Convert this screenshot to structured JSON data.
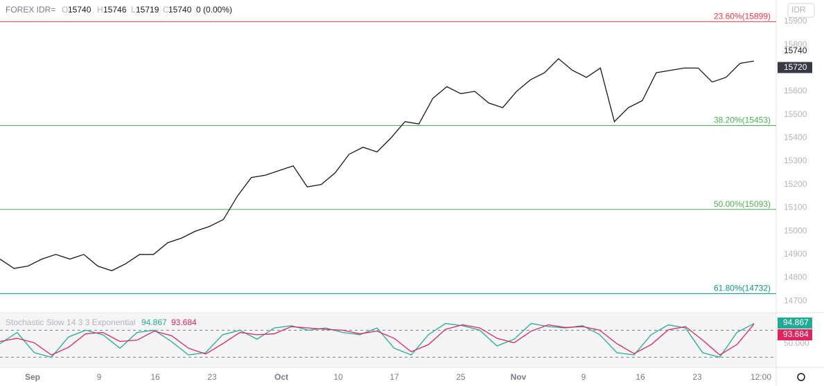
{
  "chart_data": {
    "type": "line",
    "symbol": "FOREX IDR=",
    "ohlc_header": {
      "O": 15740,
      "H": 15746,
      "L": 15719,
      "C": 15740,
      "change": "0 (0.00%)"
    },
    "currency_button": "IDR",
    "series": [
      {
        "name": "IDR=",
        "color": "#131722",
        "values": [
          14880,
          14840,
          14850,
          14880,
          14900,
          14880,
          14900,
          14850,
          14830,
          14860,
          14900,
          14900,
          14950,
          14970,
          15000,
          15020,
          15050,
          15150,
          15230,
          15240,
          15260,
          15280,
          15190,
          15200,
          15250,
          15330,
          15360,
          15340,
          15400,
          15470,
          15460,
          15570,
          15620,
          15590,
          15600,
          15550,
          15530,
          15600,
          15650,
          15680,
          15740,
          15690,
          15660,
          15700,
          15470,
          15530,
          15560,
          15680,
          15690,
          15700,
          15700,
          15640,
          15660,
          15720,
          15730
        ]
      }
    ],
    "ylim": [
      14650,
      15992
    ],
    "yticks": [
      14700,
      14800,
      14900,
      15000,
      15100,
      15200,
      15300,
      15400,
      15500,
      15600,
      15700,
      15800,
      15900
    ],
    "price_labels": [
      15740,
      15720
    ],
    "fib_levels": [
      {
        "value": 15899,
        "label": "23.60%(15899)",
        "color": "#f23645"
      },
      {
        "value": 15453,
        "label": "38.20%(15453)",
        "color": "#4caf50"
      },
      {
        "value": 15093,
        "label": "50.00%(15093)",
        "color": "#4caf50"
      },
      {
        "value": 14732,
        "label": "61.80%(14732)",
        "color": "#089981"
      }
    ],
    "x_ticks": [
      "Sep",
      "9",
      "16",
      "23",
      "Oct",
      "10",
      "17",
      "25",
      "Nov",
      "9",
      "16",
      "23",
      "12:00"
    ],
    "stochastic": {
      "title": "Stochastic Slow 14 3 3 Exponential",
      "ylim": [
        -1,
        119
      ],
      "yticks": [
        {
          "value": 50,
          "label": "50.000"
        }
      ],
      "bands": [
        80,
        20
      ],
      "series": [
        {
          "name": "%K",
          "color": "#22ab94",
          "values": [
            50,
            75,
            30,
            20,
            65,
            80,
            70,
            40,
            75,
            80,
            55,
            25,
            30,
            70,
            80,
            60,
            85,
            90,
            80,
            85,
            75,
            70,
            85,
            40,
            25,
            70,
            95,
            90,
            80,
            45,
            60,
            95,
            88,
            85,
            90,
            70,
            30,
            25,
            70,
            92,
            85,
            30,
            20,
            75,
            94.867
          ]
        },
        {
          "name": "%D",
          "color": "#e0245e",
          "values": [
            55,
            62,
            52,
            25,
            42,
            72,
            75,
            55,
            58,
            78,
            68,
            40,
            27,
            50,
            75,
            70,
            72,
            88,
            85,
            82,
            80,
            72,
            78,
            62,
            32,
            48,
            82,
            92,
            85,
            62,
            52,
            78,
            92,
            86,
            88,
            80,
            50,
            28,
            48,
            81,
            88,
            58,
            25,
            48,
            93.684
          ]
        }
      ]
    }
  }
}
